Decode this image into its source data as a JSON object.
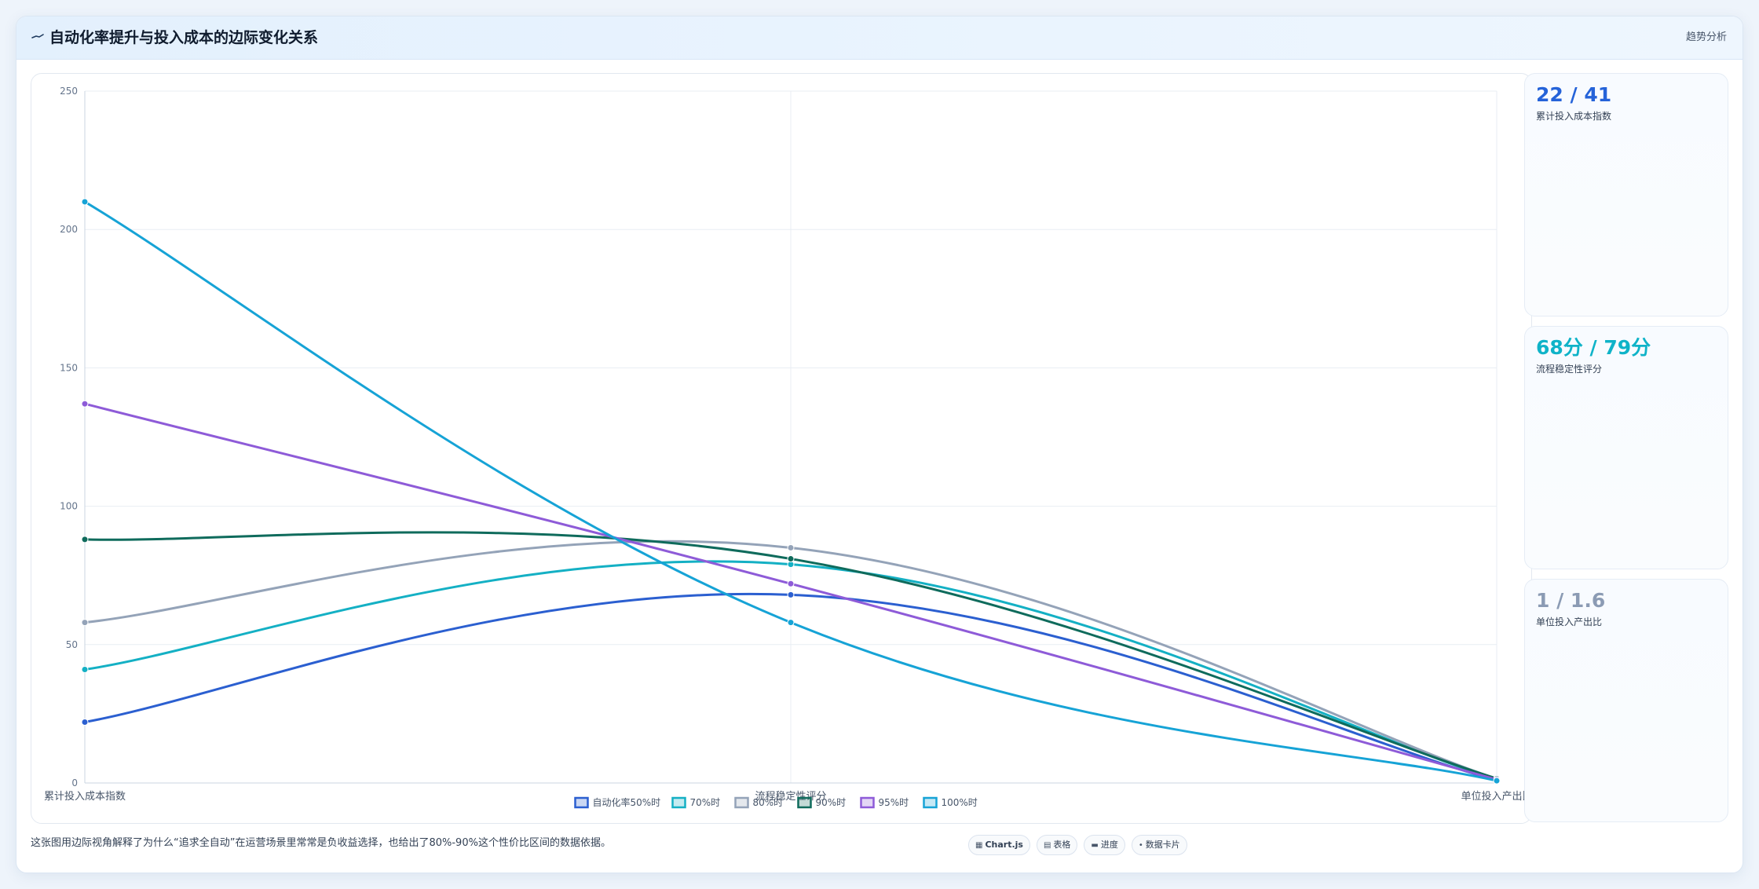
{
  "header": {
    "title": "自动化率提升与投入成本的边际变化关系",
    "icon": "trend-line-icon",
    "tag": "趋势分析"
  },
  "stats": [
    {
      "value": "22 / 41",
      "label": "累计投入成本指数",
      "color": "#2563d9"
    },
    {
      "value": "68分 / 79分",
      "label": "流程稳定性评分",
      "color": "#0fb3c8"
    },
    {
      "value": "1 / 1.6",
      "label": "单位投入产出比",
      "color": "#8b9bb4"
    }
  ],
  "footer": {
    "note": "这张图用边际视角解释了为什么“追求全自动”在运营场景里常常是负收益选择，也给出了80%-90%这个性价比区间的数据依据。",
    "chips": [
      {
        "icon": "chart-icon",
        "glyph": "▦",
        "label": "Chart.js"
      },
      {
        "icon": "table-icon",
        "glyph": "▤",
        "label": "表格"
      },
      {
        "icon": "progress-icon",
        "glyph": "▬",
        "label": "进度"
      },
      {
        "icon": "card-icon",
        "glyph": "•",
        "label": "数据卡片"
      }
    ]
  },
  "chart_data": {
    "type": "line",
    "categories": [
      "累计投入成本指数",
      "流程稳定性评分",
      "单位投入产出比"
    ],
    "ylim": [
      0,
      250
    ],
    "yticks": [
      0,
      50,
      100,
      150,
      200,
      250
    ],
    "grid": true,
    "legend_position": "bottom",
    "series": [
      {
        "name": "自动化率50%时",
        "values": [
          22,
          68,
          1
        ],
        "color": "#2b5fd0"
      },
      {
        "name": "70%时",
        "values": [
          41,
          79,
          1.3
        ],
        "color": "#14b0c4"
      },
      {
        "name": "80%时",
        "values": [
          58,
          85,
          1.5
        ],
        "color": "#94a3b8"
      },
      {
        "name": "90%时",
        "values": [
          88,
          81,
          1.6
        ],
        "color": "#0f6b5c"
      },
      {
        "name": "95%时",
        "values": [
          137,
          72,
          1.2
        ],
        "color": "#8e5bd8"
      },
      {
        "name": "100%时",
        "values": [
          210,
          58,
          0.8
        ],
        "color": "#16a3d6"
      }
    ]
  }
}
